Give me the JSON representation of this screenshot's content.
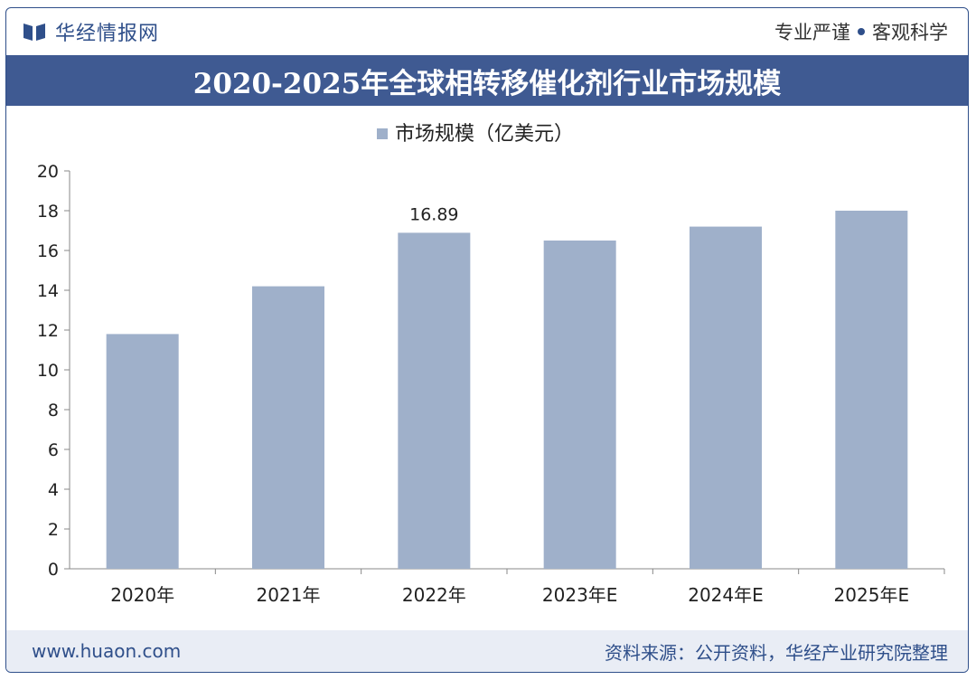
{
  "header": {
    "brand_name": "华经情报网",
    "slogan_left": "专业严谨",
    "slogan_right": "客观科学"
  },
  "title": "2020-2025年全球相转移催化剂行业市场规模",
  "footer": {
    "site": "www.huaon.com",
    "source": "资料来源：公开资料，华经产业研究院整理"
  },
  "colors": {
    "brand": "#2f4f8a",
    "title_bg": "#3f5a92",
    "bar": "#9fb0ca",
    "footer_bg": "#e9edf5"
  },
  "chart_data": {
    "type": "bar",
    "categories": [
      "2020年",
      "2021年",
      "2022年",
      "2023年E",
      "2024年E",
      "2025年E"
    ],
    "series": [
      {
        "name": "市场规模（亿美元）",
        "values": [
          11.8,
          14.2,
          16.89,
          16.5,
          17.2,
          18.0
        ]
      }
    ],
    "data_labels": [
      null,
      null,
      "16.89",
      null,
      null,
      null
    ],
    "ylim": [
      0,
      20
    ],
    "yticks": [
      0,
      2,
      4,
      6,
      8,
      10,
      12,
      14,
      16,
      18,
      20
    ],
    "grid": false,
    "legend": "top-center"
  }
}
